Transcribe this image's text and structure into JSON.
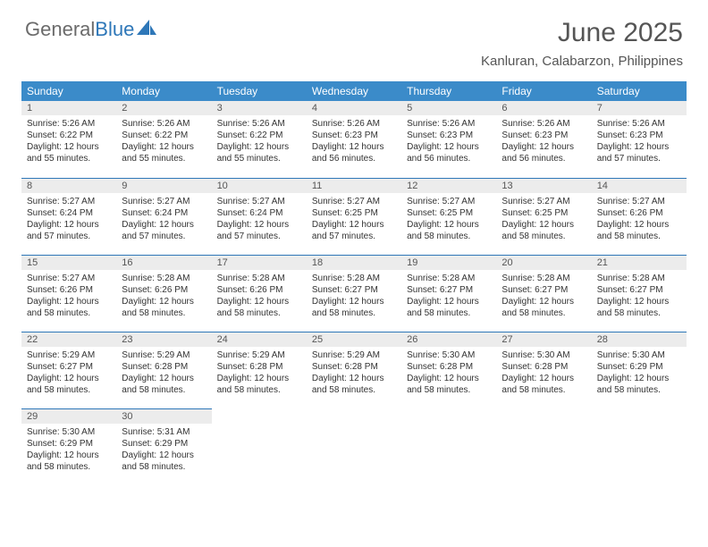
{
  "logo": {
    "text1": "General",
    "text2": "Blue"
  },
  "title": "June 2025",
  "subtitle": "Kanluran, Calabarzon, Philippines",
  "theme": {
    "header_bg": "#3b8bc9",
    "header_fg": "#ffffff",
    "daynum_bg": "#ececec",
    "border_color": "#2e77b8",
    "title_color": "#555555",
    "text_color": "#333333",
    "logo_gray": "#6b6b6b",
    "logo_blue": "#2e77b8"
  },
  "weekdays": [
    "Sunday",
    "Monday",
    "Tuesday",
    "Wednesday",
    "Thursday",
    "Friday",
    "Saturday"
  ],
  "weeks": [
    [
      {
        "n": "1",
        "sr": "5:26 AM",
        "ss": "6:22 PM",
        "dl": "12 hours and 55 minutes."
      },
      {
        "n": "2",
        "sr": "5:26 AM",
        "ss": "6:22 PM",
        "dl": "12 hours and 55 minutes."
      },
      {
        "n": "3",
        "sr": "5:26 AM",
        "ss": "6:22 PM",
        "dl": "12 hours and 55 minutes."
      },
      {
        "n": "4",
        "sr": "5:26 AM",
        "ss": "6:23 PM",
        "dl": "12 hours and 56 minutes."
      },
      {
        "n": "5",
        "sr": "5:26 AM",
        "ss": "6:23 PM",
        "dl": "12 hours and 56 minutes."
      },
      {
        "n": "6",
        "sr": "5:26 AM",
        "ss": "6:23 PM",
        "dl": "12 hours and 56 minutes."
      },
      {
        "n": "7",
        "sr": "5:26 AM",
        "ss": "6:23 PM",
        "dl": "12 hours and 57 minutes."
      }
    ],
    [
      {
        "n": "8",
        "sr": "5:27 AM",
        "ss": "6:24 PM",
        "dl": "12 hours and 57 minutes."
      },
      {
        "n": "9",
        "sr": "5:27 AM",
        "ss": "6:24 PM",
        "dl": "12 hours and 57 minutes."
      },
      {
        "n": "10",
        "sr": "5:27 AM",
        "ss": "6:24 PM",
        "dl": "12 hours and 57 minutes."
      },
      {
        "n": "11",
        "sr": "5:27 AM",
        "ss": "6:25 PM",
        "dl": "12 hours and 57 minutes."
      },
      {
        "n": "12",
        "sr": "5:27 AM",
        "ss": "6:25 PM",
        "dl": "12 hours and 58 minutes."
      },
      {
        "n": "13",
        "sr": "5:27 AM",
        "ss": "6:25 PM",
        "dl": "12 hours and 58 minutes."
      },
      {
        "n": "14",
        "sr": "5:27 AM",
        "ss": "6:26 PM",
        "dl": "12 hours and 58 minutes."
      }
    ],
    [
      {
        "n": "15",
        "sr": "5:27 AM",
        "ss": "6:26 PM",
        "dl": "12 hours and 58 minutes."
      },
      {
        "n": "16",
        "sr": "5:28 AM",
        "ss": "6:26 PM",
        "dl": "12 hours and 58 minutes."
      },
      {
        "n": "17",
        "sr": "5:28 AM",
        "ss": "6:26 PM",
        "dl": "12 hours and 58 minutes."
      },
      {
        "n": "18",
        "sr": "5:28 AM",
        "ss": "6:27 PM",
        "dl": "12 hours and 58 minutes."
      },
      {
        "n": "19",
        "sr": "5:28 AM",
        "ss": "6:27 PM",
        "dl": "12 hours and 58 minutes."
      },
      {
        "n": "20",
        "sr": "5:28 AM",
        "ss": "6:27 PM",
        "dl": "12 hours and 58 minutes."
      },
      {
        "n": "21",
        "sr": "5:28 AM",
        "ss": "6:27 PM",
        "dl": "12 hours and 58 minutes."
      }
    ],
    [
      {
        "n": "22",
        "sr": "5:29 AM",
        "ss": "6:27 PM",
        "dl": "12 hours and 58 minutes."
      },
      {
        "n": "23",
        "sr": "5:29 AM",
        "ss": "6:28 PM",
        "dl": "12 hours and 58 minutes."
      },
      {
        "n": "24",
        "sr": "5:29 AM",
        "ss": "6:28 PM",
        "dl": "12 hours and 58 minutes."
      },
      {
        "n": "25",
        "sr": "5:29 AM",
        "ss": "6:28 PM",
        "dl": "12 hours and 58 minutes."
      },
      {
        "n": "26",
        "sr": "5:30 AM",
        "ss": "6:28 PM",
        "dl": "12 hours and 58 minutes."
      },
      {
        "n": "27",
        "sr": "5:30 AM",
        "ss": "6:28 PM",
        "dl": "12 hours and 58 minutes."
      },
      {
        "n": "28",
        "sr": "5:30 AM",
        "ss": "6:29 PM",
        "dl": "12 hours and 58 minutes."
      }
    ],
    [
      {
        "n": "29",
        "sr": "5:30 AM",
        "ss": "6:29 PM",
        "dl": "12 hours and 58 minutes."
      },
      {
        "n": "30",
        "sr": "5:31 AM",
        "ss": "6:29 PM",
        "dl": "12 hours and 58 minutes."
      },
      null,
      null,
      null,
      null,
      null
    ]
  ],
  "labels": {
    "sunrise": "Sunrise: ",
    "sunset": "Sunset: ",
    "daylight": "Daylight: "
  }
}
